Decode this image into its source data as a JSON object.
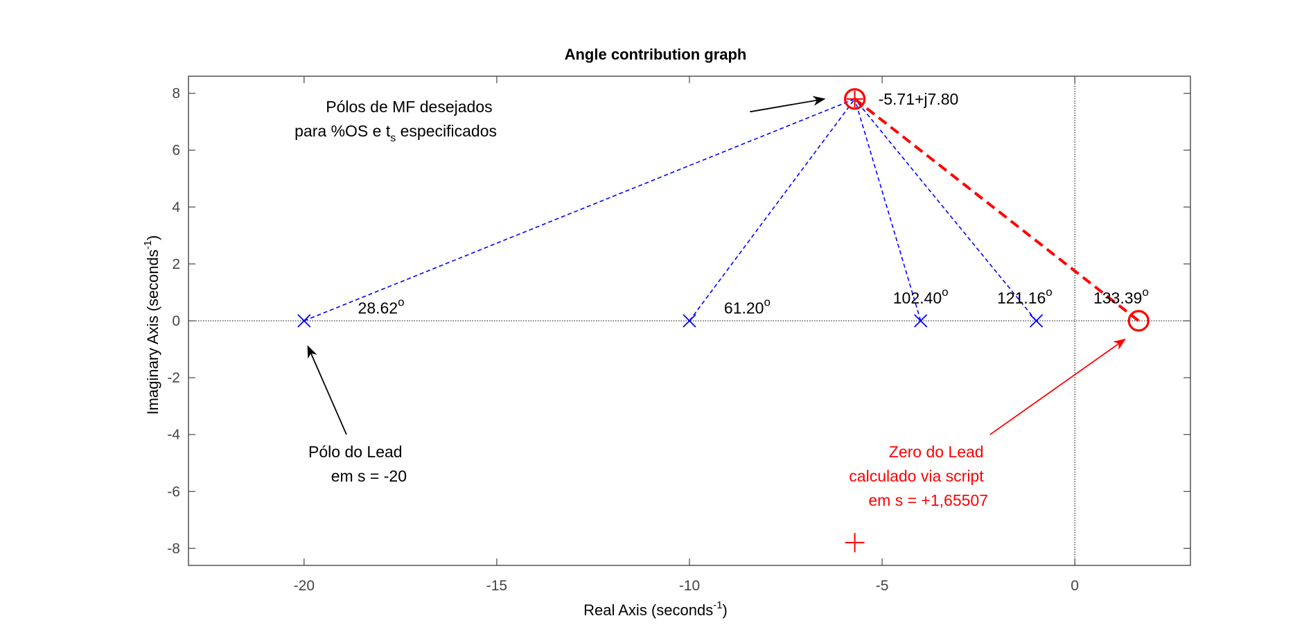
{
  "chart_data": {
    "type": "scatter",
    "title": "Angle contribution graph",
    "xlabel": {
      "text": "Real Axis (seconds",
      "sup": "-1",
      "close": ")"
    },
    "ylabel": {
      "text": "Imaginary Axis (seconds",
      "sup": "-1",
      "close": ")"
    },
    "xlim": [
      -23,
      3
    ],
    "ylim": [
      -8.6,
      8.6
    ],
    "xticks": [
      -20,
      -15,
      -10,
      -5,
      0
    ],
    "yticks": [
      -8,
      -6,
      -4,
      -2,
      0,
      2,
      4,
      6,
      8
    ],
    "box": true,
    "grid": false,
    "colors": {
      "poles": "#0000ff",
      "zero": "#ff0000",
      "axes": "#444444",
      "annotation": "#000000"
    },
    "desired_pole": {
      "x": -5.71,
      "y": 7.8,
      "label": "-5.71+j7.80"
    },
    "conjugate_pole": {
      "x": -5.71,
      "y": -7.8
    },
    "open_loop_poles": [
      {
        "x": -20,
        "y": 0,
        "angle": "28.62",
        "angle_at": [
          -18,
          0.45
        ]
      },
      {
        "x": -10,
        "y": 0,
        "angle": "61.20",
        "angle_at": [
          -8.5,
          0.45
        ]
      },
      {
        "x": -4,
        "y": 0,
        "angle": "102.40",
        "angle_at": [
          -4,
          0.8
        ]
      },
      {
        "x": -1,
        "y": 0,
        "angle": "121.16",
        "angle_at": [
          -1.3,
          0.8
        ]
      }
    ],
    "lead_zero": {
      "x": 1.65507,
      "y": 0,
      "angle": "133.39",
      "angle_at": [
        1.2,
        0.8
      ]
    },
    "degree_symbol": "o",
    "annotations": {
      "desired_poles": {
        "line1": "Pólos de MF desejados",
        "line2_pre": "para %OS e t",
        "line2_sub": "s",
        "line2_post": " especificados",
        "arrow_from": [
          -8.5,
          7.35
        ],
        "arrow_to": [
          -6.5,
          7.8
        ]
      },
      "lead_pole": {
        "line1": "Pólo do Lead",
        "line2": "em s = -20",
        "arrow_from": [
          -18.9,
          -4
        ],
        "arrow_to": [
          -19.9,
          -0.9
        ]
      },
      "lead_zero": {
        "line1": "Zero do Lead",
        "line2": "calculado via script",
        "line3": "em s = +1,65507",
        "arrow_from": [
          -2.2,
          -4
        ],
        "arrow_to": [
          1.3,
          -0.65
        ]
      }
    }
  }
}
